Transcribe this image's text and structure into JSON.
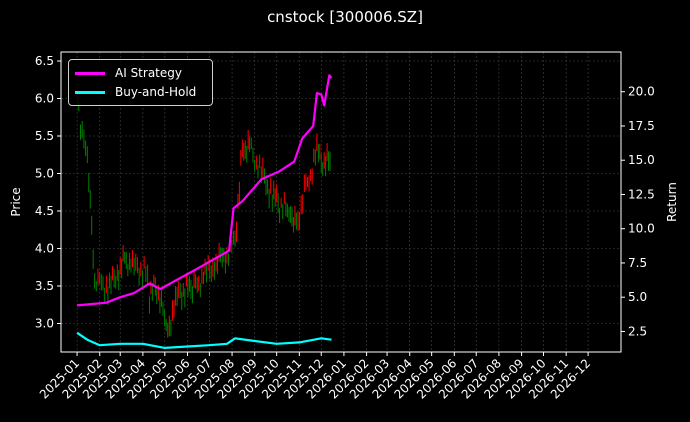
{
  "title": "cnstock [300006.SZ]",
  "chart_data": {
    "type": "line",
    "title": "cnstock [300006.SZ]",
    "xlabel": "",
    "ylabel": "Price",
    "y2label": "Return",
    "ylim": [
      2.62,
      6.62
    ],
    "y2lim": [
      1.0,
      22.9
    ],
    "yticks": [
      "3.0",
      "3.5",
      "4.0",
      "4.5",
      "5.0",
      "5.5",
      "6.0",
      "6.5"
    ],
    "y2ticks": [
      "2.5",
      "5.0",
      "7.5",
      "10.0",
      "12.5",
      "15.0",
      "17.5",
      "20.0"
    ],
    "xticks": [
      "2025-01",
      "2025-02",
      "2025-03",
      "2025-04",
      "2025-05",
      "2025-06",
      "2025-07",
      "2025-08",
      "2025-09",
      "2025-10",
      "2025-11",
      "2025-12",
      "2026-01",
      "2026-02",
      "2026-03",
      "2026-04",
      "2026-05",
      "2026-06",
      "2026-07",
      "2026-08",
      "2026-09",
      "2026-10",
      "2026-11",
      "2026-12"
    ],
    "grid": true,
    "legend_position": "upper left",
    "series": [
      {
        "name": "AI Strategy",
        "axis": "right",
        "color": "#ff00ff",
        "x": [
          "2025-01-01",
          "2025-01-20",
          "2025-02-10",
          "2025-03-01",
          "2025-03-20",
          "2025-04-10",
          "2025-04-25",
          "2025-05-15",
          "2025-06-05",
          "2025-06-25",
          "2025-07-15",
          "2025-07-28",
          "2025-08-03",
          "2025-08-15",
          "2025-09-10",
          "2025-10-05",
          "2025-10-25",
          "2025-11-05",
          "2025-11-20",
          "2025-11-25",
          "2025-12-01",
          "2025-12-05",
          "2025-12-12",
          "2025-12-15"
        ],
        "values": [
          4.4,
          4.5,
          4.6,
          5.0,
          5.3,
          6.0,
          5.6,
          6.2,
          6.8,
          7.4,
          8.0,
          8.4,
          11.5,
          12.0,
          13.6,
          14.2,
          14.9,
          16.6,
          17.5,
          19.9,
          19.8,
          19.0,
          21.2,
          21.0
        ]
      },
      {
        "name": "Buy-and-Hold",
        "axis": "right",
        "color": "#00ffff",
        "x": [
          "2025-01-01",
          "2025-01-15",
          "2025-02-01",
          "2025-03-01",
          "2025-04-01",
          "2025-05-01",
          "2025-06-01",
          "2025-07-01",
          "2025-07-25",
          "2025-08-05",
          "2025-09-01",
          "2025-10-01",
          "2025-11-01",
          "2025-12-01",
          "2025-12-15"
        ],
        "values": [
          2.4,
          1.9,
          1.5,
          1.6,
          1.6,
          1.3,
          1.4,
          1.5,
          1.6,
          2.0,
          1.8,
          1.6,
          1.7,
          2.0,
          1.9
        ]
      },
      {
        "name": "Price",
        "axis": "left",
        "color_up": "#ff0000",
        "color_down": "#008000",
        "x": [
          "2025-01-01",
          "2025-01-08",
          "2025-01-15",
          "2025-01-25",
          "2025-02-10",
          "2025-02-25",
          "2025-03-05",
          "2025-03-20",
          "2025-04-05",
          "2025-04-10",
          "2025-04-20",
          "2025-05-05",
          "2025-05-20",
          "2025-06-10",
          "2025-06-25",
          "2025-07-10",
          "2025-07-25",
          "2025-08-05",
          "2025-08-15",
          "2025-08-25",
          "2025-09-10",
          "2025-09-25",
          "2025-10-05",
          "2025-10-20",
          "2025-10-28",
          "2025-11-10",
          "2025-11-25",
          "2025-12-05",
          "2025-12-15"
        ],
        "values": [
          6.0,
          5.5,
          5.2,
          3.6,
          3.5,
          3.6,
          3.9,
          3.75,
          3.7,
          3.4,
          3.5,
          2.9,
          3.4,
          3.5,
          3.65,
          3.8,
          3.95,
          4.1,
          5.3,
          5.4,
          5.0,
          4.7,
          4.6,
          4.5,
          4.3,
          4.8,
          5.3,
          5.1,
          5.2
        ]
      }
    ]
  },
  "legend": {
    "items": [
      {
        "label": "AI Strategy",
        "color": "#ff00ff"
      },
      {
        "label": "Buy-and-Hold",
        "color": "#00ffff"
      }
    ]
  },
  "axes": {
    "left_label": "Price",
    "right_label": "Return"
  }
}
